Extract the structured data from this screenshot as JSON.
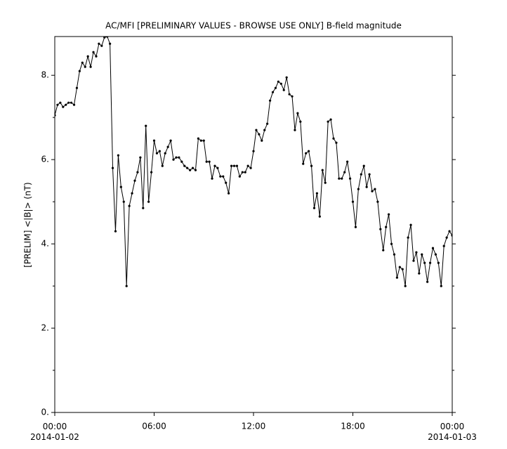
{
  "chart_data": {
    "type": "line",
    "title": "AC/MFI  [PRELIMINARY VALUES - BROWSE USE ONLY] B-field magnitude",
    "y_label": "[PRELIM] <|B|> (nT)",
    "x": [
      "2014-01-02 00:00",
      "2014-01-02 00:10",
      "2014-01-02 00:20",
      "2014-01-02 00:30",
      "2014-01-02 00:40",
      "2014-01-02 00:50",
      "2014-01-02 01:00",
      "2014-01-02 01:10",
      "2014-01-02 01:20",
      "2014-01-02 01:30",
      "2014-01-02 01:40",
      "2014-01-02 01:50",
      "2014-01-02 02:00",
      "2014-01-02 02:10",
      "2014-01-02 02:20",
      "2014-01-02 02:30",
      "2014-01-02 02:40",
      "2014-01-02 02:50",
      "2014-01-02 03:00",
      "2014-01-02 03:10",
      "2014-01-02 03:20",
      "2014-01-02 03:30",
      "2014-01-02 03:40",
      "2014-01-02 03:50",
      "2014-01-02 04:00",
      "2014-01-02 04:10",
      "2014-01-02 04:20",
      "2014-01-02 04:30",
      "2014-01-02 04:40",
      "2014-01-02 04:50",
      "2014-01-02 05:00",
      "2014-01-02 05:10",
      "2014-01-02 05:20",
      "2014-01-02 05:30",
      "2014-01-02 05:40",
      "2014-01-02 05:50",
      "2014-01-02 06:00",
      "2014-01-02 06:10",
      "2014-01-02 06:20",
      "2014-01-02 06:30",
      "2014-01-02 06:40",
      "2014-01-02 06:50",
      "2014-01-02 07:00",
      "2014-01-02 07:10",
      "2014-01-02 07:20",
      "2014-01-02 07:30",
      "2014-01-02 07:40",
      "2014-01-02 07:50",
      "2014-01-02 08:00",
      "2014-01-02 08:10",
      "2014-01-02 08:20",
      "2014-01-02 08:30",
      "2014-01-02 08:40",
      "2014-01-02 08:50",
      "2014-01-02 09:00",
      "2014-01-02 09:10",
      "2014-01-02 09:20",
      "2014-01-02 09:30",
      "2014-01-02 09:40",
      "2014-01-02 09:50",
      "2014-01-02 10:00",
      "2014-01-02 10:10",
      "2014-01-02 10:20",
      "2014-01-02 10:30",
      "2014-01-02 10:40",
      "2014-01-02 10:50",
      "2014-01-02 11:00",
      "2014-01-02 11:10",
      "2014-01-02 11:20",
      "2014-01-02 11:30",
      "2014-01-02 11:40",
      "2014-01-02 11:50",
      "2014-01-02 12:00",
      "2014-01-02 12:10",
      "2014-01-02 12:20",
      "2014-01-02 12:30",
      "2014-01-02 12:40",
      "2014-01-02 12:50",
      "2014-01-02 13:00",
      "2014-01-02 13:10",
      "2014-01-02 13:20",
      "2014-01-02 13:30",
      "2014-01-02 13:40",
      "2014-01-02 13:50",
      "2014-01-02 14:00",
      "2014-01-02 14:10",
      "2014-01-02 14:20",
      "2014-01-02 14:30",
      "2014-01-02 14:40",
      "2014-01-02 14:50",
      "2014-01-02 15:00",
      "2014-01-02 15:10",
      "2014-01-02 15:20",
      "2014-01-02 15:30",
      "2014-01-02 15:40",
      "2014-01-02 15:50",
      "2014-01-02 16:00",
      "2014-01-02 16:10",
      "2014-01-02 16:20",
      "2014-01-02 16:30",
      "2014-01-02 16:40",
      "2014-01-02 16:50",
      "2014-01-02 17:00",
      "2014-01-02 17:10",
      "2014-01-02 17:20",
      "2014-01-02 17:30",
      "2014-01-02 17:40",
      "2014-01-02 17:50",
      "2014-01-02 18:00",
      "2014-01-02 18:10",
      "2014-01-02 18:20",
      "2014-01-02 18:30",
      "2014-01-02 18:40",
      "2014-01-02 18:50",
      "2014-01-02 19:00",
      "2014-01-02 19:10",
      "2014-01-02 19:20",
      "2014-01-02 19:30",
      "2014-01-02 19:40",
      "2014-01-02 19:50",
      "2014-01-02 20:00",
      "2014-01-02 20:10",
      "2014-01-02 20:20",
      "2014-01-02 20:30",
      "2014-01-02 20:40",
      "2014-01-02 20:50",
      "2014-01-02 21:00",
      "2014-01-02 21:10",
      "2014-01-02 21:20",
      "2014-01-02 21:30",
      "2014-01-02 21:40",
      "2014-01-02 21:50",
      "2014-01-02 22:00",
      "2014-01-02 22:10",
      "2014-01-02 22:20",
      "2014-01-02 22:30",
      "2014-01-02 22:40",
      "2014-01-02 22:50",
      "2014-01-02 23:00",
      "2014-01-02 23:10",
      "2014-01-02 23:20",
      "2014-01-02 23:30",
      "2014-01-02 23:40",
      "2014-01-02 23:50",
      "2014-01-03 00:00"
    ],
    "series": [
      {
        "color": "#000000",
        "values": [
          7.05,
          7.3,
          7.35,
          7.25,
          7.3,
          7.35,
          7.35,
          7.3,
          7.7,
          8.1,
          8.3,
          8.2,
          8.45,
          8.2,
          8.55,
          8.45,
          8.75,
          8.7,
          8.9,
          8.92,
          8.75,
          5.8,
          4.3,
          6.1,
          5.35,
          5.0,
          3.0,
          4.9,
          5.2,
          5.5,
          5.7,
          6.05,
          4.85,
          6.8,
          5.0,
          5.7,
          6.45,
          6.15,
          6.2,
          5.85,
          6.15,
          6.3,
          6.45,
          6.0,
          6.05,
          6.05,
          5.95,
          5.85,
          5.8,
          5.75,
          5.8,
          5.75,
          6.5,
          6.45,
          6.45,
          5.95,
          5.95,
          5.55,
          5.85,
          5.8,
          5.6,
          5.6,
          5.45,
          5.2,
          5.85,
          5.85,
          5.85,
          5.6,
          5.7,
          5.7,
          5.85,
          5.8,
          6.2,
          6.7,
          6.6,
          6.45,
          6.7,
          6.85,
          7.4,
          7.6,
          7.7,
          7.85,
          7.8,
          7.65,
          7.95,
          7.55,
          7.5,
          6.7,
          7.1,
          6.9,
          5.9,
          6.15,
          6.2,
          5.85,
          4.85,
          5.2,
          4.65,
          5.75,
          5.45,
          6.9,
          6.95,
          6.5,
          6.4,
          5.55,
          5.55,
          5.7,
          5.95,
          5.55,
          5.0,
          4.4,
          5.3,
          5.65,
          5.85,
          5.35,
          5.65,
          5.25,
          5.3,
          5.0,
          4.35,
          3.85,
          4.4,
          4.7,
          4.0,
          3.75,
          3.2,
          3.45,
          3.4,
          3.0,
          4.15,
          4.45,
          3.6,
          3.8,
          3.3,
          3.75,
          3.55,
          3.1,
          3.55,
          3.9,
          3.75,
          3.55,
          3.0,
          3.95,
          4.15,
          4.3,
          4.2
        ]
      }
    ],
    "xlim": [
      "2014-01-02 00:00",
      "2014-01-03 00:00"
    ],
    "xticks": [
      {
        "value": "2014-01-02 00:00",
        "label": "00:00\n2014-01-02"
      },
      {
        "value": "2014-01-02 06:00",
        "label": "06:00"
      },
      {
        "value": "2014-01-02 12:00",
        "label": "12:00"
      },
      {
        "value": "2014-01-02 18:00",
        "label": "18:00"
      },
      {
        "value": "2014-01-03 00:00",
        "label": "00:00\n2014-01-03"
      }
    ],
    "ylim": [
      0,
      8.92
    ],
    "yticks": [
      {
        "value": 0,
        "label": "0."
      },
      {
        "value": 2,
        "label": "2."
      },
      {
        "value": 4,
        "label": "4."
      },
      {
        "value": 6,
        "label": "6."
      },
      {
        "value": 8,
        "label": "8."
      }
    ],
    "yminor_ticks": [
      1,
      3,
      5,
      7
    ]
  }
}
